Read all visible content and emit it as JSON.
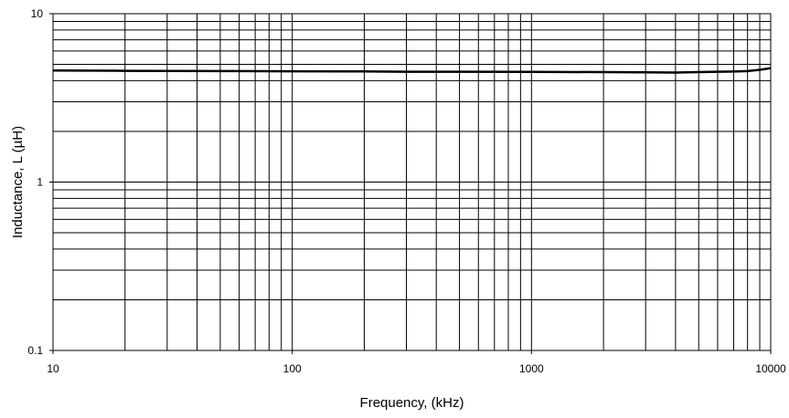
{
  "chart_data": {
    "type": "line",
    "title": "",
    "xlabel": "Frequency, (kHz)",
    "ylabel": "Inductance, L (µH)",
    "x_scale": "log",
    "y_scale": "log",
    "xlim": [
      10,
      10000
    ],
    "ylim": [
      0.1,
      10
    ],
    "grid": true,
    "legend": "none",
    "x_ticks": [
      {
        "value": 10,
        "label": "10"
      },
      {
        "value": 100,
        "label": "100"
      },
      {
        "value": 1000,
        "label": "1000"
      },
      {
        "value": 10000,
        "label": "10000"
      }
    ],
    "y_ticks": [
      {
        "value": 0.1,
        "label": "0.1"
      },
      {
        "value": 1,
        "label": "1"
      },
      {
        "value": 10,
        "label": "10"
      }
    ],
    "series": [
      {
        "color": "#000000",
        "x": [
          10,
          20,
          50,
          100,
          200,
          300,
          500,
          1000,
          2000,
          3000,
          4000,
          5000,
          6000,
          7000,
          8000,
          9000,
          10000
        ],
        "y": [
          4.6,
          4.58,
          4.56,
          4.55,
          4.54,
          4.52,
          4.52,
          4.51,
          4.5,
          4.48,
          4.47,
          4.5,
          4.52,
          4.53,
          4.56,
          4.64,
          4.75
        ]
      }
    ]
  }
}
